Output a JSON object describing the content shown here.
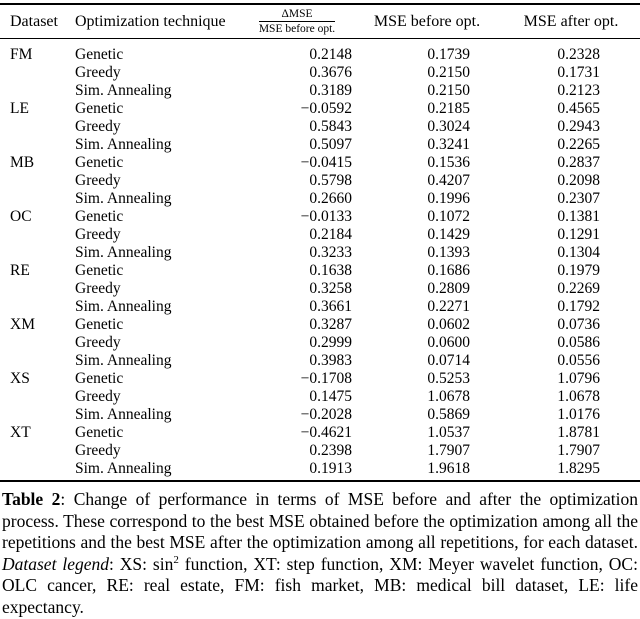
{
  "table": {
    "headers": {
      "dataset": "Dataset",
      "technique": "Optimization technique",
      "ratio_numerator": "ΔMSE",
      "ratio_denominator": "MSE before opt.",
      "mse_before": "MSE before opt.",
      "mse_after": "MSE after opt."
    },
    "rows": [
      {
        "dataset": "FM",
        "technique": "Genetic",
        "ratio": "0.2148",
        "mse_before": "0.1739",
        "mse_after": "0.2328"
      },
      {
        "dataset": "",
        "technique": "Greedy",
        "ratio": "0.3676",
        "mse_before": "0.2150",
        "mse_after": "0.1731"
      },
      {
        "dataset": "",
        "technique": "Sim. Annealing",
        "ratio": "0.3189",
        "mse_before": "0.2150",
        "mse_after": "0.2123"
      },
      {
        "dataset": "LE",
        "technique": "Genetic",
        "ratio": "−0.0592",
        "mse_before": "0.2185",
        "mse_after": "0.4565"
      },
      {
        "dataset": "",
        "technique": "Greedy",
        "ratio": "0.5843",
        "mse_before": "0.3024",
        "mse_after": "0.2943"
      },
      {
        "dataset": "",
        "technique": "Sim. Annealing",
        "ratio": "0.5097",
        "mse_before": "0.3241",
        "mse_after": "0.2265"
      },
      {
        "dataset": "MB",
        "technique": "Genetic",
        "ratio": "−0.0415",
        "mse_before": "0.1536",
        "mse_after": "0.2837"
      },
      {
        "dataset": "",
        "technique": "Greedy",
        "ratio": "0.5798",
        "mse_before": "0.4207",
        "mse_after": "0.2098"
      },
      {
        "dataset": "",
        "technique": "Sim. Annealing",
        "ratio": "0.2660",
        "mse_before": "0.1996",
        "mse_after": "0.2307"
      },
      {
        "dataset": "OC",
        "technique": "Genetic",
        "ratio": "−0.0133",
        "mse_before": "0.1072",
        "mse_after": "0.1381"
      },
      {
        "dataset": "",
        "technique": "Greedy",
        "ratio": "0.2184",
        "mse_before": "0.1429",
        "mse_after": "0.1291"
      },
      {
        "dataset": "",
        "technique": "Sim. Annealing",
        "ratio": "0.3233",
        "mse_before": "0.1393",
        "mse_after": "0.1304"
      },
      {
        "dataset": "RE",
        "technique": "Genetic",
        "ratio": "0.1638",
        "mse_before": "0.1686",
        "mse_after": "0.1979"
      },
      {
        "dataset": "",
        "technique": "Greedy",
        "ratio": "0.3258",
        "mse_before": "0.2809",
        "mse_after": "0.2269"
      },
      {
        "dataset": "",
        "technique": "Sim. Annealing",
        "ratio": "0.3661",
        "mse_before": "0.2271",
        "mse_after": "0.1792"
      },
      {
        "dataset": "XM",
        "technique": "Genetic",
        "ratio": "0.3287",
        "mse_before": "0.0602",
        "mse_after": "0.0736"
      },
      {
        "dataset": "",
        "technique": "Greedy",
        "ratio": "0.2999",
        "mse_before": "0.0600",
        "mse_after": "0.0586"
      },
      {
        "dataset": "",
        "technique": "Sim. Annealing",
        "ratio": "0.3983",
        "mse_before": "0.0714",
        "mse_after": "0.0556"
      },
      {
        "dataset": "XS",
        "technique": "Genetic",
        "ratio": "−0.1708",
        "mse_before": "0.5253",
        "mse_after": "1.0796"
      },
      {
        "dataset": "",
        "technique": "Greedy",
        "ratio": "0.1475",
        "mse_before": "1.0678",
        "mse_after": "1.0678"
      },
      {
        "dataset": "",
        "technique": "Sim. Annealing",
        "ratio": "−0.2028",
        "mse_before": "0.5869",
        "mse_after": "1.0176"
      },
      {
        "dataset": "XT",
        "technique": "Genetic",
        "ratio": "−0.4621",
        "mse_before": "1.0537",
        "mse_after": "1.8781"
      },
      {
        "dataset": "",
        "technique": "Greedy",
        "ratio": "0.2398",
        "mse_before": "1.7907",
        "mse_after": "1.7907"
      },
      {
        "dataset": "",
        "technique": "Sim. Annealing",
        "ratio": "0.1913",
        "mse_before": "1.9618",
        "mse_after": "1.8295"
      }
    ]
  },
  "caption": {
    "label": "Table 2",
    "body1": ": Change of performance in terms of MSE before and after the optimization process. These correspond to the best MSE obtained before the optimization among all the repetitions and the best MSE after the optimization among all repetitions, for each dataset. ",
    "legend_label": "Dataset legend",
    "body2": ": XS: sin",
    "sup": "2",
    "body3": " function, XT: step function, XM: Meyer wavelet function, OC: OLC cancer, RE: real estate, FM: fish market, MB: medical bill dataset, LE: life expectancy."
  }
}
